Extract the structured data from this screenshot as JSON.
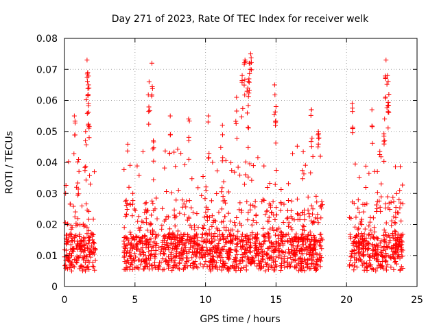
{
  "chart_data": {
    "type": "scatter",
    "title": "Day 271 of 2023, Rate Of TEC Index for receiver welk",
    "xlabel": "GPS time / hours",
    "ylabel": "ROTI / TECUs",
    "xlim": [
      0,
      25
    ],
    "ylim": [
      0,
      0.08
    ],
    "xticks": [
      0,
      5,
      10,
      15,
      20,
      25
    ],
    "xtick_labels": [
      "0",
      "5",
      "10",
      "15",
      "20",
      "25"
    ],
    "yticks": [
      0,
      0.01,
      0.02,
      0.03,
      0.04,
      0.05,
      0.06,
      0.07,
      0.08
    ],
    "ytick_labels": [
      "0",
      "0.01",
      "0.02",
      "0.03",
      "0.04",
      "0.05",
      "0.06",
      "0.07",
      "0.08"
    ],
    "grid": true,
    "marker": "+",
    "series_color": "#ff0000",
    "segments": [
      {
        "start": 0.0,
        "end": 2.2
      },
      {
        "start": 4.2,
        "end": 18.3
      },
      {
        "start": 20.2,
        "end": 24.0
      }
    ],
    "spikes": [
      {
        "x": 0.7,
        "y": 0.055
      },
      {
        "x": 1.0,
        "y": 0.041
      },
      {
        "x": 1.5,
        "y": 0.05
      },
      {
        "x": 1.6,
        "y": 0.073
      },
      {
        "x": 1.65,
        "y": 0.069
      },
      {
        "x": 1.7,
        "y": 0.065
      },
      {
        "x": 1.7,
        "y": 0.059
      },
      {
        "x": 6.0,
        "y": 0.066
      },
      {
        "x": 6.2,
        "y": 0.072
      },
      {
        "x": 6.3,
        "y": 0.047
      },
      {
        "x": 7.5,
        "y": 0.055
      },
      {
        "x": 8.8,
        "y": 0.054
      },
      {
        "x": 10.2,
        "y": 0.055
      },
      {
        "x": 11.2,
        "y": 0.052
      },
      {
        "x": 12.2,
        "y": 0.061
      },
      {
        "x": 12.6,
        "y": 0.068
      },
      {
        "x": 12.8,
        "y": 0.073
      },
      {
        "x": 13.2,
        "y": 0.075
      },
      {
        "x": 13.1,
        "y": 0.072
      },
      {
        "x": 13.0,
        "y": 0.064
      },
      {
        "x": 14.9,
        "y": 0.065
      },
      {
        "x": 15.0,
        "y": 0.058
      },
      {
        "x": 17.5,
        "y": 0.057
      },
      {
        "x": 18.0,
        "y": 0.05
      },
      {
        "x": 20.4,
        "y": 0.059
      },
      {
        "x": 21.8,
        "y": 0.057
      },
      {
        "x": 22.8,
        "y": 0.073
      },
      {
        "x": 22.9,
        "y": 0.068
      },
      {
        "x": 23.0,
        "y": 0.062
      },
      {
        "x": 22.7,
        "y": 0.054
      }
    ]
  }
}
